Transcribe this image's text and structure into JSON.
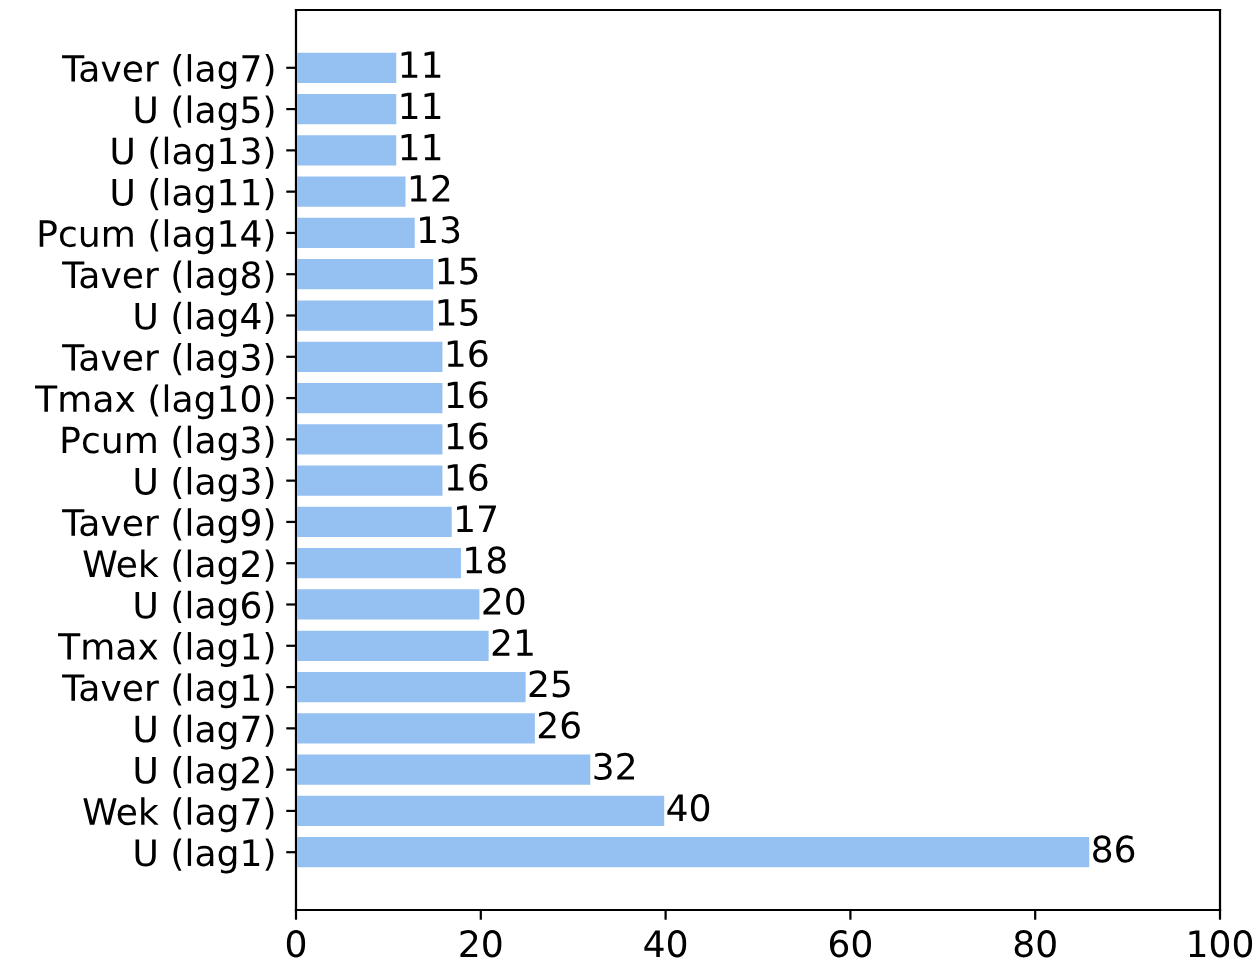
{
  "chart_data": {
    "type": "bar",
    "orientation": "horizontal",
    "categories": [
      "Taver (lag7)",
      "U (lag5)",
      "U (lag13)",
      "U (lag11)",
      "Pcum (lag14)",
      "Taver (lag8)",
      "U (lag4)",
      "Taver (lag3)",
      "Tmax (lag10)",
      "Pcum (lag3)",
      "U (lag3)",
      "Taver (lag9)",
      "Wek (lag2)",
      "U (lag6)",
      "Tmax (lag1)",
      "Taver (lag1)",
      "U (lag7)",
      "U (lag2)",
      "Wek (lag7)",
      "U (lag1)"
    ],
    "values": [
      11,
      11,
      11,
      12,
      13,
      15,
      15,
      16,
      16,
      16,
      16,
      17,
      18,
      20,
      21,
      25,
      26,
      32,
      40,
      86
    ],
    "color": "#94c1f2",
    "data_labels": true,
    "xlim": [
      0,
      100
    ],
    "xticks": [
      0,
      20,
      40,
      60,
      80,
      100
    ],
    "grid": false
  }
}
